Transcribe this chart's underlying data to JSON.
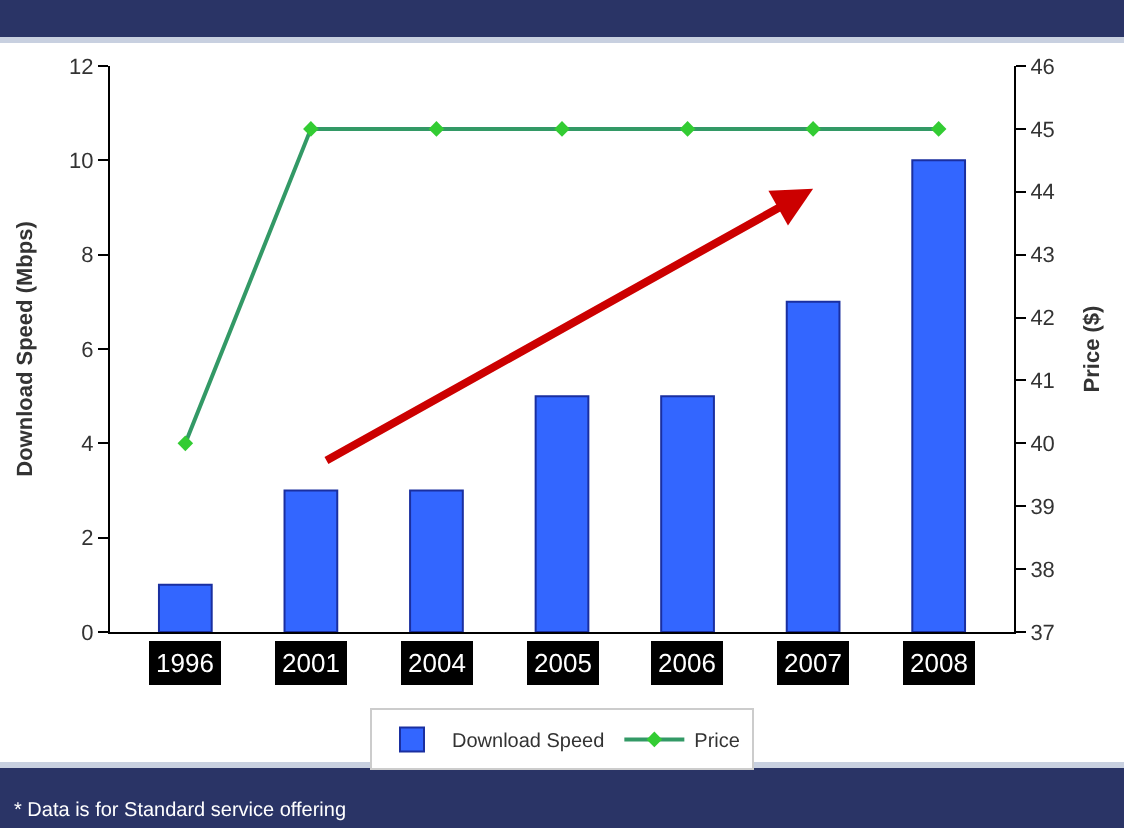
{
  "chart_data": {
    "type": "bar",
    "categories": [
      "1996",
      "2001",
      "2004",
      "2005",
      "2006",
      "2007",
      "2008"
    ],
    "series": [
      {
        "name": "Download Speed",
        "color": "#3366ff",
        "values": [
          1,
          3,
          3,
          5,
          5,
          7,
          10
        ]
      },
      {
        "name": "Price",
        "type": "line",
        "axis": "y2",
        "color": "#339966",
        "marker": "diamond",
        "values": [
          40,
          45,
          45,
          45,
          45,
          45,
          45
        ]
      }
    ],
    "ylabel": "Download Speed (Mbps)",
    "y2label": "Price ($)",
    "ylim": [
      0,
      12
    ],
    "yticks": [
      0,
      2,
      4,
      6,
      8,
      10,
      12
    ],
    "y2lim": [
      37,
      46
    ],
    "y2ticks": [
      37,
      38,
      39,
      40,
      41,
      42,
      43,
      44,
      45,
      46
    ],
    "legend": "bottom",
    "annotations": [
      "* Data is for Standard service offering"
    ]
  }
}
